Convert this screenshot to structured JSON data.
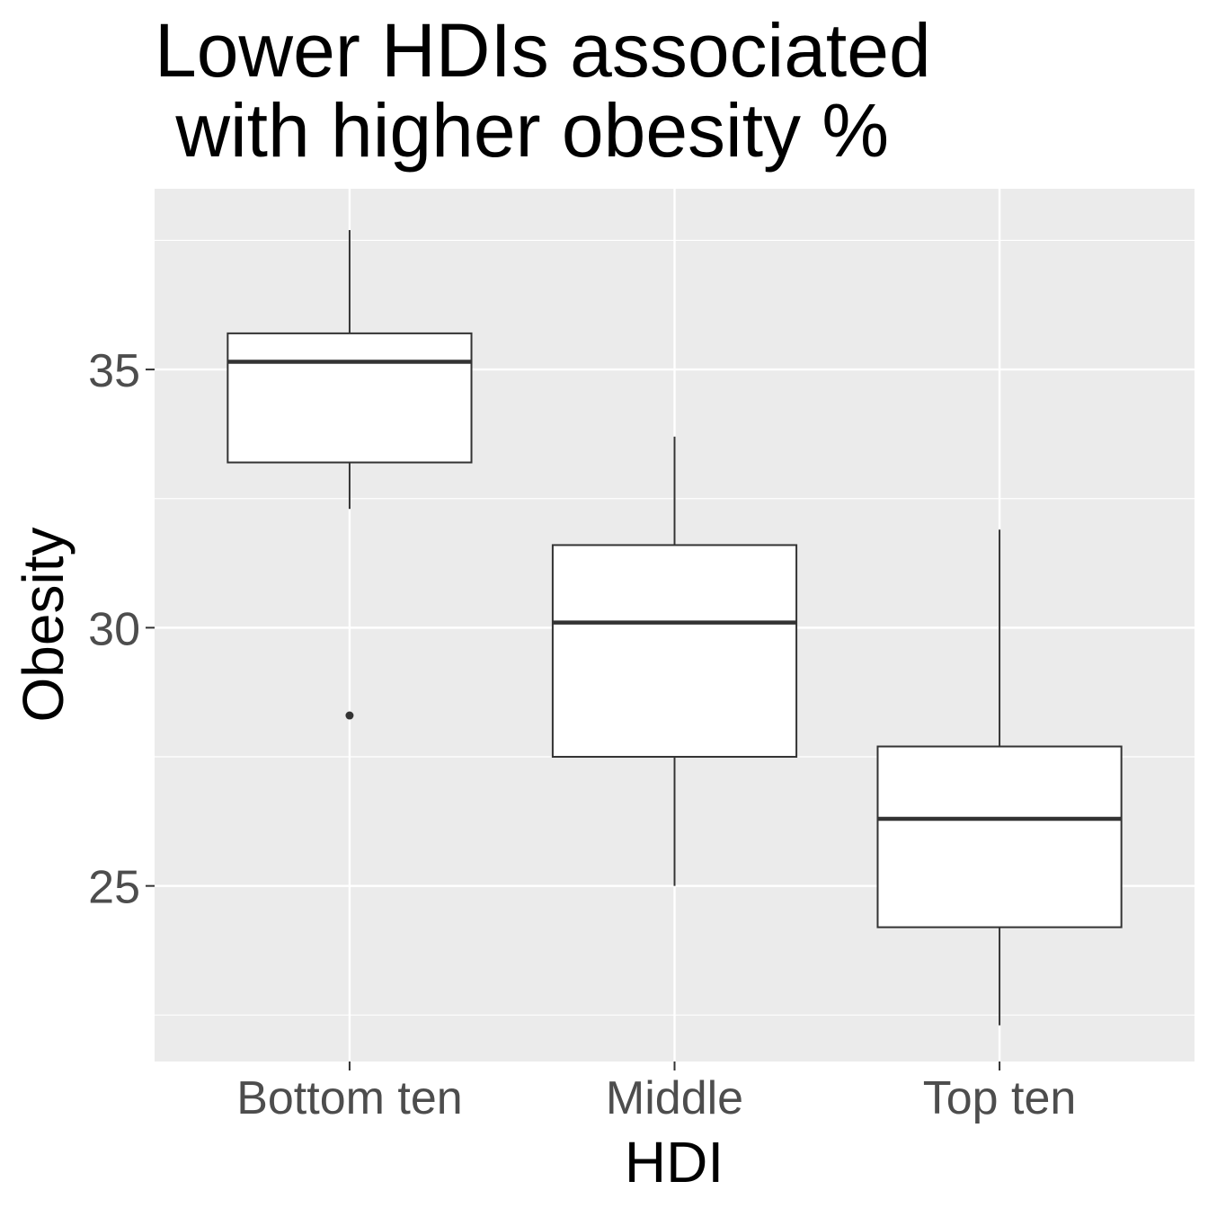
{
  "chart_data": {
    "type": "boxplot",
    "title_lines": [
      "Lower HDIs associated",
      " with higher obesity %"
    ],
    "xlabel": "HDI",
    "ylabel": "Obesity",
    "categories": [
      "Bottom ten",
      "Middle",
      "Top ten"
    ],
    "boxes": [
      {
        "category": "Bottom ten",
        "whisker_low": 32.3,
        "q1": 33.2,
        "median": 35.15,
        "q3": 35.7,
        "whisker_high": 37.7,
        "outliers": [
          28.3
        ]
      },
      {
        "category": "Middle",
        "whisker_low": 25.0,
        "q1": 27.5,
        "median": 30.1,
        "q3": 31.6,
        "whisker_high": 33.7,
        "outliers": []
      },
      {
        "category": "Top ten",
        "whisker_low": 22.3,
        "q1": 24.2,
        "median": 26.3,
        "q3": 27.7,
        "whisker_high": 31.9,
        "outliers": []
      }
    ],
    "y_ticks": [
      "25",
      "30",
      "35"
    ],
    "ylim": [
      21.6,
      38.5
    ],
    "grid": true,
    "legend": "none",
    "colors": {
      "panel": "#EBEBEB",
      "grid": "#FFFFFF",
      "box_fill": "#FFFFFF",
      "box_stroke": "#333333",
      "tick_text": "#4D4D4D",
      "axis_title": "#000000"
    }
  }
}
